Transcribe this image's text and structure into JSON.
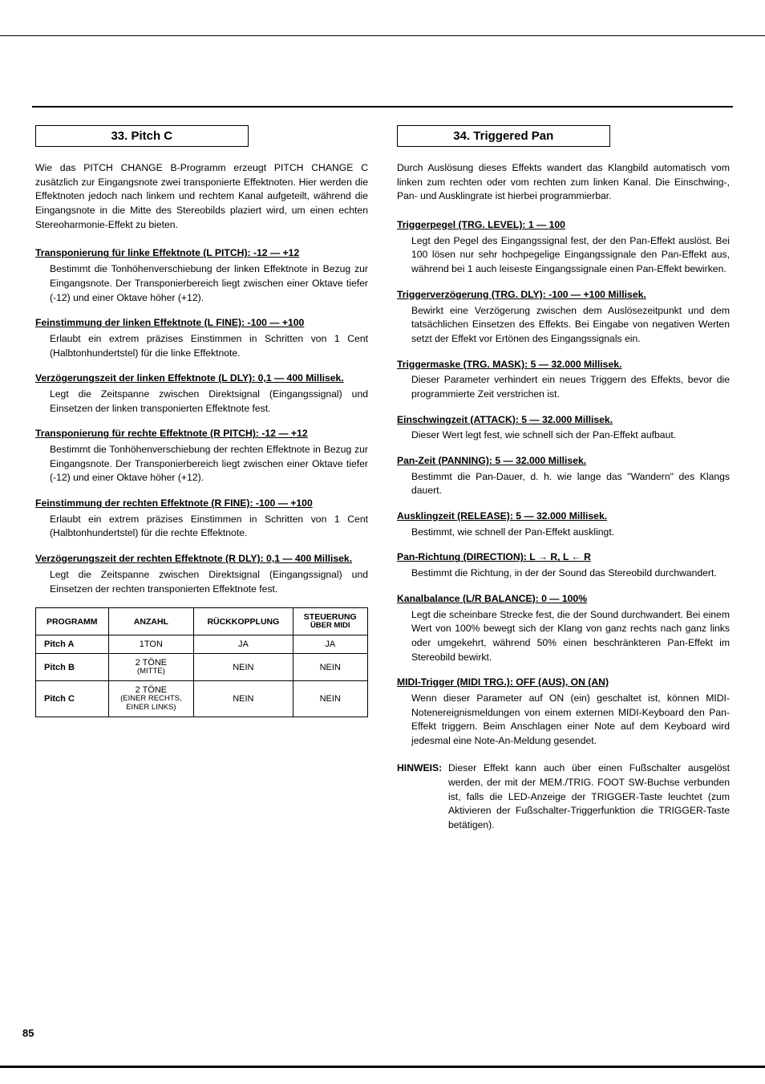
{
  "page_number": "85",
  "left": {
    "title": "33.  Pitch C",
    "intro": "Wie das PITCH CHANGE B-Programm erzeugt PITCH CHANGE C zusätzlich zur Eingangsnote zwei transponierte Effektnoten. Hier werden die Effektnoten jedoch nach linkem und rechtem Kanal aufgeteilt, während die Eingangsnote in die Mitte des Stereobilds plaziert wird, um einen echten Stereoharmonie-Effekt zu bieten.",
    "params": [
      {
        "head": "Transponierung für linke Effektnote (L PITCH): -12 — +12",
        "body": "Bestimmt die Tonhöhenverschiebung der linken Effektnote in Bezug zur Eingangsnote. Der Transponierbereich liegt zwischen einer Oktave tiefer (-12) und einer Oktave höher (+12)."
      },
      {
        "head": "Feinstimmung der linken Effektnote (L FINE): -100 — +100",
        "body": "Erlaubt ein extrem präzises Einstimmen in Schritten von 1 Cent (Halbtonhundertstel) für die linke Effektnote."
      },
      {
        "head": "Verzögerungszeit der linken Effektnote (L DLY): 0,1 — 400 Millisek.",
        "body": "Legt die Zeitspanne zwischen Direktsignal (Eingangssignal) und Einsetzen der linken transponierten Effektnote fest."
      },
      {
        "head": "Transponierung für rechte Effektnote (R PITCH): -12 — +12",
        "body": "Bestimmt die Tonhöhenverschiebung der rechten Effektnote in Bezug zur Eingangsnote. Der Transponierbereich liegt zwischen einer Oktave tiefer (-12) und einer Oktave höher (+12)."
      },
      {
        "head": "Feinstimmung der rechten Effektnote (R FINE): -100 — +100",
        "body": "Erlaubt ein extrem präzises Einstimmen in Schritten von 1 Cent (Halbtonhundertstel) für die rechte Effektnote."
      },
      {
        "head": "Verzögerungszeit der rechten Effektnote (R DLY): 0,1 — 400 Millisek.",
        "body": "Legt die Zeitspanne zwischen Direktsignal (Eingangssignal) und Einsetzen der rechten transponierten Effektnote fest."
      }
    ],
    "table": {
      "headers": [
        "PROGRAMM",
        "ANZAHL",
        "RÜCKKOPPLUNG",
        "STEUERUNG ÜBER MIDI"
      ],
      "rows": [
        [
          "Pitch A",
          "1TON",
          "JA",
          "JA"
        ],
        [
          "Pitch B",
          "2 TÖNE\n(MITTE)",
          "NEIN",
          "NEIN"
        ],
        [
          "Pitch C",
          "2 TÖNE\n(EINER RECHTS,\nEINER LINKS)",
          "NEIN",
          "NEIN"
        ]
      ]
    }
  },
  "right": {
    "title": "34.  Triggered Pan",
    "intro": "Durch Auslösung dieses Effekts wandert das Klangbild automatisch vom linken zum rechten oder vom rechten zum linken Kanal. Die Einschwing-, Pan- und Ausklingrate ist hierbei programmierbar.",
    "params": [
      {
        "head": "Triggerpegel (TRG. LEVEL): 1 — 100",
        "body": "Legt den Pegel des Eingangssignal fest, der den Pan-Effekt auslöst. Bei 100 lösen nur sehr hochpegelige Eingangssignale den Pan-Effekt aus, während bei 1 auch leiseste Eingangssignale einen Pan-Effekt bewirken."
      },
      {
        "head": "Triggerverzögerung (TRG. DLY): -100 — +100 Millisek.",
        "body": "Bewirkt eine Verzögerung zwischen dem Auslösezeitpunkt und dem tatsächlichen Einsetzen des Effekts. Bei Eingabe von negativen Werten setzt der Effekt vor Ertönen des Eingangssignals ein."
      },
      {
        "head": "Triggermaske (TRG. MASK): 5 — 32.000 Millisek.",
        "body": "Dieser Parameter verhindert ein neues Triggern des Effekts, bevor die programmierte Zeit verstrichen ist."
      },
      {
        "head": "Einschwingzeit (ATTACK): 5 — 32.000 Millisek.",
        "body": "Dieser Wert legt fest, wie schnell sich der Pan-Effekt aufbaut."
      },
      {
        "head": "Pan-Zeit (PANNING): 5 — 32.000 Millisek.",
        "body": "Bestimmt die Pan-Dauer, d. h. wie lange das \"Wandern\" des Klangs dauert."
      },
      {
        "head": "Ausklingzeit (RELEASE): 5 — 32.000 Millisek.",
        "body": "Bestimmt, wie schnell der Pan-Effekt ausklingt."
      },
      {
        "head": "Pan-Richtung (DIRECTION): L → R, L ← R",
        "body": "Bestimmt die Richtung, in der der Sound das Stereobild durchwandert."
      },
      {
        "head": "Kanalbalance (L/R BALANCE): 0 — 100%",
        "body": "Legt die scheinbare Strecke fest, die der Sound durchwandert. Bei einem Wert von 100% bewegt sich der Klang von ganz rechts nach ganz links oder umgekehrt, während 50% einen beschränkteren Pan-Effekt im Stereobild bewirkt."
      },
      {
        "head": "MIDI-Trigger (MIDI TRG.): OFF (AUS), ON (AN)",
        "body": "Wenn dieser Parameter auf ON (ein) geschaltet ist, können MIDI-Notenereignismeldungen von einem externen MIDI-Keyboard den Pan-Effekt triggern. Beim Anschlagen einer Note auf dem Keyboard wird jedesmal eine Note-An-Meldung gesendet."
      }
    ],
    "note_label": "HINWEIS:",
    "note_body": "Dieser Effekt kann auch über einen Fußschalter ausgelöst werden, der mit der MEM./TRIG. FOOT SW-Buchse verbunden ist, falls die LED-Anzeige der TRIGGER-Taste leuchtet (zum Aktivieren der Fußschalter-Triggerfunktion die TRIGGER-Taste betätigen)."
  }
}
